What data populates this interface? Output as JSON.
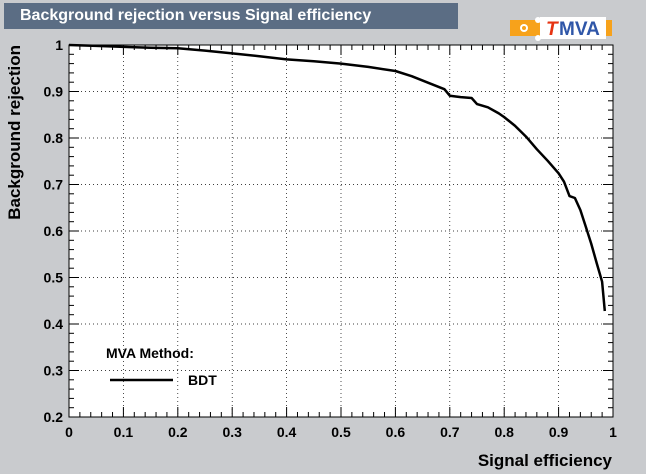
{
  "header": {
    "title": "Background rejection versus Signal efficiency",
    "logo_text": "MVA",
    "logo_letter": "T"
  },
  "colors": {
    "background": "#c9cbce",
    "title_bar": "#5b6d84",
    "logo_orange": "#f7a21b",
    "logo_blue": "#2f56a8",
    "logo_red": "#e63312",
    "curve": "#000000"
  },
  "chart_data": {
    "type": "line",
    "xlabel": "Signal efficiency",
    "ylabel": "Background rejection",
    "xlim": [
      0,
      1
    ],
    "ylim": [
      0.2,
      1
    ],
    "x_ticks": [
      "0",
      "0.1",
      "0.2",
      "0.3",
      "0.4",
      "0.5",
      "0.6",
      "0.7",
      "0.8",
      "0.9",
      "1"
    ],
    "y_ticks": [
      "0.2",
      "0.3",
      "0.4",
      "0.5",
      "0.6",
      "0.7",
      "0.8",
      "0.9",
      "1"
    ],
    "grid": true,
    "legend": {
      "header": "MVA Method:",
      "placement": "bottom-left",
      "entries": [
        "BDT"
      ]
    },
    "series": [
      {
        "name": "BDT",
        "x": [
          0.0,
          0.05,
          0.1,
          0.15,
          0.2,
          0.25,
          0.3,
          0.35,
          0.4,
          0.45,
          0.5,
          0.55,
          0.6,
          0.63,
          0.66,
          0.69,
          0.7,
          0.72,
          0.74,
          0.75,
          0.77,
          0.79,
          0.8,
          0.82,
          0.84,
          0.86,
          0.88,
          0.9,
          0.91,
          0.92,
          0.93,
          0.94,
          0.95,
          0.96,
          0.97,
          0.98,
          0.985
        ],
        "y": [
          1.0,
          0.998,
          0.996,
          0.994,
          0.993,
          0.988,
          0.982,
          0.976,
          0.969,
          0.965,
          0.96,
          0.953,
          0.944,
          0.933,
          0.919,
          0.905,
          0.891,
          0.888,
          0.886,
          0.873,
          0.866,
          0.853,
          0.845,
          0.826,
          0.803,
          0.776,
          0.751,
          0.724,
          0.706,
          0.675,
          0.671,
          0.645,
          0.609,
          0.573,
          0.531,
          0.491,
          0.428
        ]
      }
    ]
  }
}
